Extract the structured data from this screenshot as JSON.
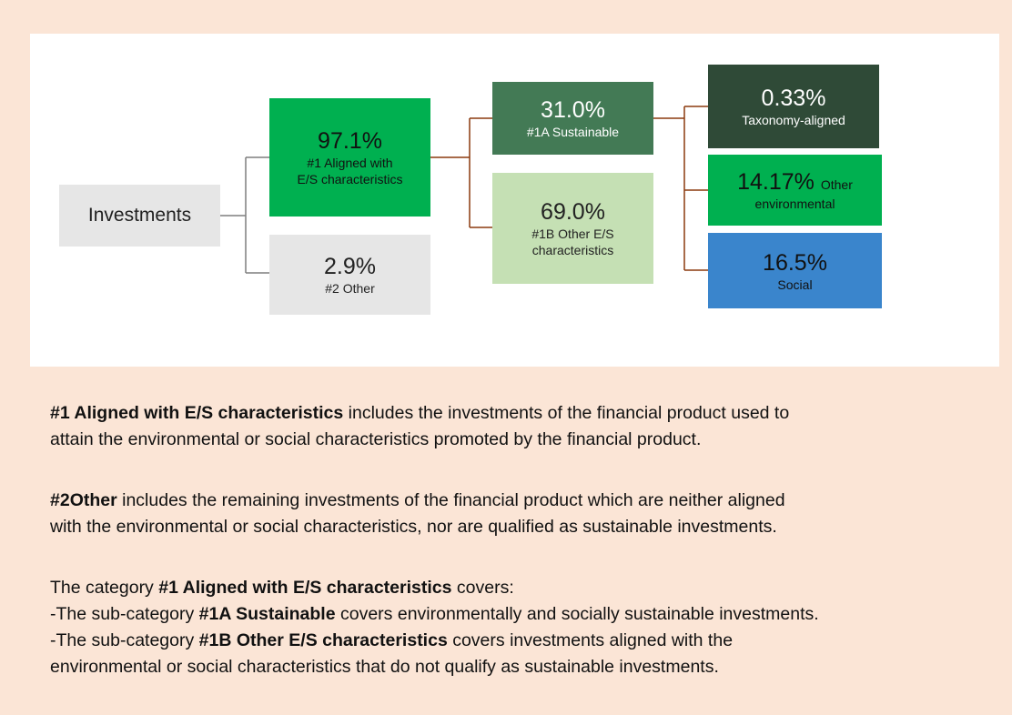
{
  "diagram": {
    "root": {
      "label": "Investments"
    },
    "nodes": [
      {
        "value": "97.1%",
        "label": [
          "#1 Aligned with",
          "E/S characteristics"
        ]
      },
      {
        "value": "2.9%",
        "label": [
          "#2 Other"
        ]
      },
      {
        "value": "31.0%",
        "label": [
          "#1A Sustainable"
        ]
      },
      {
        "value": "69.0%",
        "label": [
          "#1B Other E/S",
          "characteristics"
        ]
      },
      {
        "value": "0.33%",
        "label": [
          "Taxonomy-aligned"
        ]
      },
      {
        "value": "14.17%",
        "label": [
          "Other",
          "environmental"
        ]
      },
      {
        "value": "16.5%",
        "label": [
          "Social"
        ]
      }
    ]
  },
  "notes": [
    [
      [
        {
          "text": "#1 Aligned with E/S characteristics",
          "bold": true
        },
        {
          "text": " includes the investments of the financial product used to"
        }
      ],
      [
        {
          "text": "attain the environmental or social characteristics promoted by the financial product."
        }
      ]
    ],
    [
      [
        {
          "text": "#2Other",
          "bold": true
        },
        {
          "text": " includes the remaining investments of the financial product which are neither aligned"
        }
      ],
      [
        {
          "text": "with the environmental or social characteristics, nor are qualified as sustainable investments."
        }
      ]
    ],
    [
      [
        {
          "text": "The category "
        },
        {
          "text": "#1 Aligned with E/S characteristics",
          "bold": true
        },
        {
          "text": " covers:"
        }
      ],
      [
        {
          "text": "-The sub-category "
        },
        {
          "text": "#1A Sustainable",
          "bold": true
        },
        {
          "text": " covers environmentally and socially sustainable investments."
        }
      ],
      [
        {
          "text": "-The sub-category "
        },
        {
          "text": "#1B Other E/S characteristics",
          "bold": true
        },
        {
          "text": " covers investments aligned with the"
        }
      ],
      [
        {
          "text": "environmental or social characteristics that do not qualify as sustainable investments."
        }
      ]
    ]
  ]
}
